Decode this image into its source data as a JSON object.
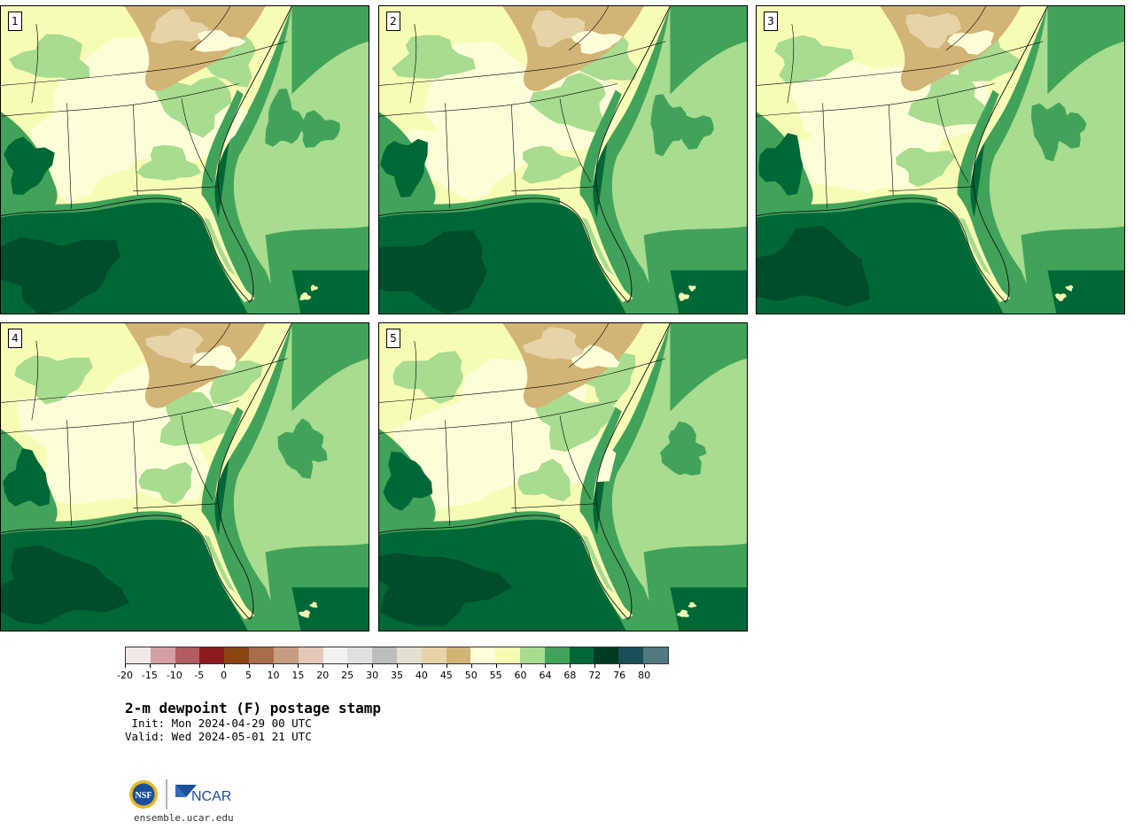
{
  "figure": {
    "title": "2-m dewpoint (F) postage stamp",
    "init": " Init: Mon 2024-04-29 00 UTC",
    "valid": "Valid: Wed 2024-05-01 21 UTC",
    "url": "ensemble.ucar.edu"
  },
  "logos": {
    "nsf": "NSF",
    "ncar": "NCAR"
  },
  "panels": [
    {
      "label": "1"
    },
    {
      "label": "2"
    },
    {
      "label": "3"
    },
    {
      "label": "4"
    },
    {
      "label": "5"
    }
  ],
  "colorbar": {
    "colors": [
      "#f3e8e8",
      "#d4a0a3",
      "#b05c60",
      "#8b1a1f",
      "#8b4513",
      "#a86d4b",
      "#c79c80",
      "#e4c8b8",
      "#f2f2f2",
      "#e0e0e0",
      "#bdbdbd",
      "#e4e0cf",
      "#e6d3a8",
      "#d2b476",
      "#fdfed8",
      "#f7fcb4",
      "#a8dc90",
      "#41a35a",
      "#006837",
      "#003a22",
      "#1a4f5a",
      "#507a80"
    ],
    "tick_values": [
      "-20",
      "-15",
      "-10",
      "-5",
      "0",
      "5",
      "10",
      "15",
      "20",
      "25",
      "30",
      "35",
      "40",
      "45",
      "50",
      "55",
      "60",
      "64",
      "68",
      "72",
      "76",
      "80"
    ],
    "range": [
      -20,
      84
    ],
    "units": "F"
  }
}
